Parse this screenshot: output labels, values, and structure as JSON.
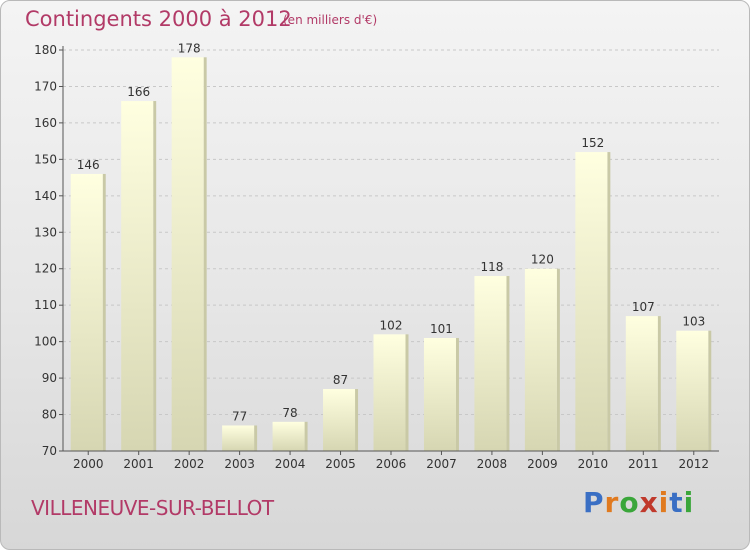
{
  "title": "Contingents 2000 à 2012",
  "subtitle": "(en milliers d'€)",
  "location": "VILLENEUVE-SUR-BELLOT",
  "logo": {
    "text": "Proxiti",
    "colors": [
      "#3a6fc4",
      "#e07a1f",
      "#3aa63a",
      "#c0392b",
      "#e07a1f",
      "#3a6fc4",
      "#3aa63a"
    ]
  },
  "colors": {
    "accent": "#b23a67",
    "bar_top": "#ffffe0",
    "bar_bottom": "#d6d6b2",
    "axis": "#555555"
  },
  "chart_data": {
    "type": "bar",
    "categories": [
      "2000",
      "2001",
      "2002",
      "2003",
      "2004",
      "2005",
      "2006",
      "2007",
      "2008",
      "2009",
      "2010",
      "2011",
      "2012"
    ],
    "values": [
      146,
      166,
      178,
      77,
      78,
      87,
      102,
      101,
      118,
      120,
      152,
      107,
      103
    ],
    "data_labels": [
      "146",
      "166",
      "178",
      "77",
      "78",
      "87",
      "102",
      "101",
      "118",
      "120",
      "152",
      "107",
      "103"
    ],
    "ylim": [
      70,
      180
    ],
    "yticks": [
      "70",
      "80",
      "90",
      "100",
      "110",
      "120",
      "130",
      "140",
      "150",
      "160",
      "170",
      "180"
    ],
    "grid": true,
    "legend": "none"
  }
}
